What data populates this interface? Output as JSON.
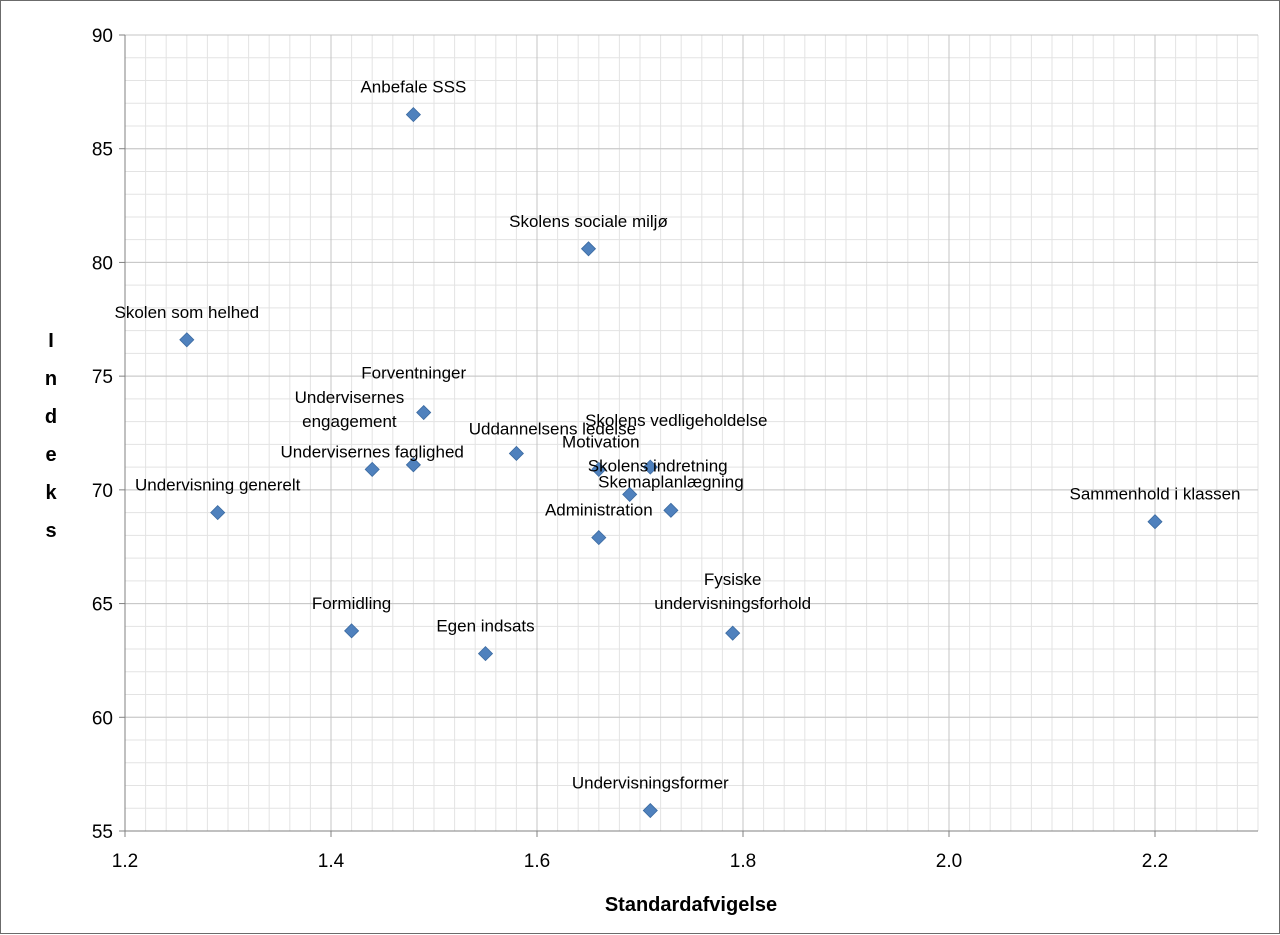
{
  "chart_data": {
    "type": "scatter",
    "title": "",
    "xlabel": "Standardafvigelse",
    "ylabel": "Indeks",
    "xlim": [
      1.2,
      2.3
    ],
    "ylim": [
      55,
      90
    ],
    "x_ticks": [
      "1.2",
      "1.4",
      "1.6",
      "1.8",
      "2.0",
      "2.2"
    ],
    "y_ticks": [
      "55",
      "60",
      "65",
      "70",
      "75",
      "80",
      "85",
      "90"
    ],
    "grid": true,
    "legend": "none",
    "marker": "diamond",
    "color": "#4f81bd",
    "points": [
      {
        "label": "Anbefale SSS",
        "x": 1.48,
        "y": 86.5
      },
      {
        "label": "Skolens sociale miljø",
        "x": 1.65,
        "y": 80.6
      },
      {
        "label": "Skolen som helhed",
        "x": 1.26,
        "y": 76.6
      },
      {
        "label": "Forventninger",
        "x": 1.49,
        "y": 73.4
      },
      {
        "label": "Undervisernes engagement",
        "x": 1.48,
        "y": 71.1
      },
      {
        "label": "Undervisernes faglighed",
        "x": 1.44,
        "y": 70.9
      },
      {
        "label": "Uddannelsens ledelse",
        "x": 1.58,
        "y": 71.6
      },
      {
        "label": "Skolens vedligeholdelse",
        "x": 1.71,
        "y": 71.0
      },
      {
        "label": "Motivation",
        "x": 1.66,
        "y": 70.9
      },
      {
        "label": "Skolens indretning",
        "x": 1.69,
        "y": 69.8
      },
      {
        "label": "Skemaplanlægning",
        "x": 1.73,
        "y": 69.1
      },
      {
        "label": "Administration",
        "x": 1.66,
        "y": 67.9
      },
      {
        "label": "Undervisning generelt",
        "x": 1.29,
        "y": 69.0
      },
      {
        "label": "Sammenhold i klassen",
        "x": 2.2,
        "y": 68.6
      },
      {
        "label": "Fysiske undervisningsforhold",
        "x": 1.79,
        "y": 63.7
      },
      {
        "label": "Formidling",
        "x": 1.42,
        "y": 63.8
      },
      {
        "label": "Egen indsats",
        "x": 1.55,
        "y": 62.8
      },
      {
        "label": "Undervisningsformer",
        "x": 1.71,
        "y": 55.9
      }
    ]
  }
}
